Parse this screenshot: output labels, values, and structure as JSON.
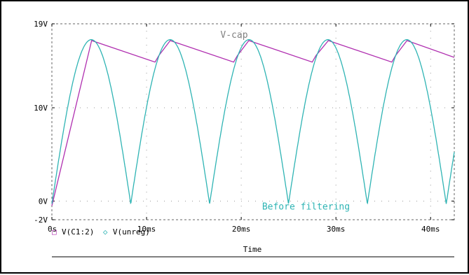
{
  "window": {
    "background": "#ffffff",
    "frame_color": "#000000"
  },
  "chart_data": {
    "type": "line",
    "xlabel": "Time",
    "ylabel": "",
    "xlim": [
      0,
      0.0425
    ],
    "ylim": [
      -2,
      19
    ],
    "x_unit": "s",
    "y_unit": "V",
    "x_ticks": [
      {
        "value": 0,
        "label": "0s"
      },
      {
        "value": 0.01,
        "label": "10ms"
      },
      {
        "value": 0.02,
        "label": "20ms"
      },
      {
        "value": 0.03,
        "label": "30ms"
      },
      {
        "value": 0.04,
        "label": "40ms"
      }
    ],
    "y_ticks": [
      {
        "value": -2,
        "label": "-2V"
      },
      {
        "value": 0,
        "label": "0V"
      },
      {
        "value": 10,
        "label": "10V"
      },
      {
        "value": 19,
        "label": "19V"
      }
    ],
    "grid": true,
    "grid_style": "dotted",
    "series": [
      {
        "name": "V(C1:2)",
        "color": "#b02fb0",
        "marker": "square",
        "points": [
          [
            0,
            -0.5
          ],
          [
            0.0042,
            17.2
          ],
          [
            0.0109,
            14.9
          ],
          [
            0.0113,
            15.6
          ],
          [
            0.0125,
            17.2
          ],
          [
            0.0192,
            14.9
          ],
          [
            0.0196,
            15.6
          ],
          [
            0.0208,
            17.2
          ],
          [
            0.0275,
            14.9
          ],
          [
            0.0279,
            15.6
          ],
          [
            0.0292,
            17.2
          ],
          [
            0.0359,
            14.9
          ],
          [
            0.0363,
            15.6
          ],
          [
            0.0375,
            17.2
          ],
          [
            0.0425,
            15.4
          ]
        ]
      },
      {
        "name": "V(unreg)",
        "color": "#2fb4b4",
        "marker": "diamond",
        "peak": 17.6,
        "period": 0.00833,
        "points": [
          [
            0,
            -0.6
          ],
          [
            0.00417,
            17.6
          ],
          [
            0.00833,
            -0.3
          ],
          [
            0.0125,
            17.6
          ],
          [
            0.01667,
            -0.3
          ],
          [
            0.02083,
            17.6
          ],
          [
            0.025,
            -0.3
          ],
          [
            0.02917,
            17.6
          ],
          [
            0.03333,
            -0.3
          ],
          [
            0.0375,
            17.6
          ],
          [
            0.04167,
            -0.3
          ],
          [
            0.0425,
            6.0
          ]
        ]
      }
    ],
    "annotations": [
      {
        "text": "V-cap",
        "x": 0.0178,
        "y": 17.5,
        "color": "#808080"
      },
      {
        "text": "Before filtering",
        "x": 0.0222,
        "y": -0.9,
        "color": "#2fb4b4"
      }
    ],
    "legend": {
      "placement": "bottom-left",
      "entries": [
        {
          "label": "V(C1:2)",
          "symbol": "□",
          "color": "#b02fb0"
        },
        {
          "label": "V(unreg)",
          "symbol": "◇",
          "color": "#2fb4b4"
        }
      ]
    }
  }
}
